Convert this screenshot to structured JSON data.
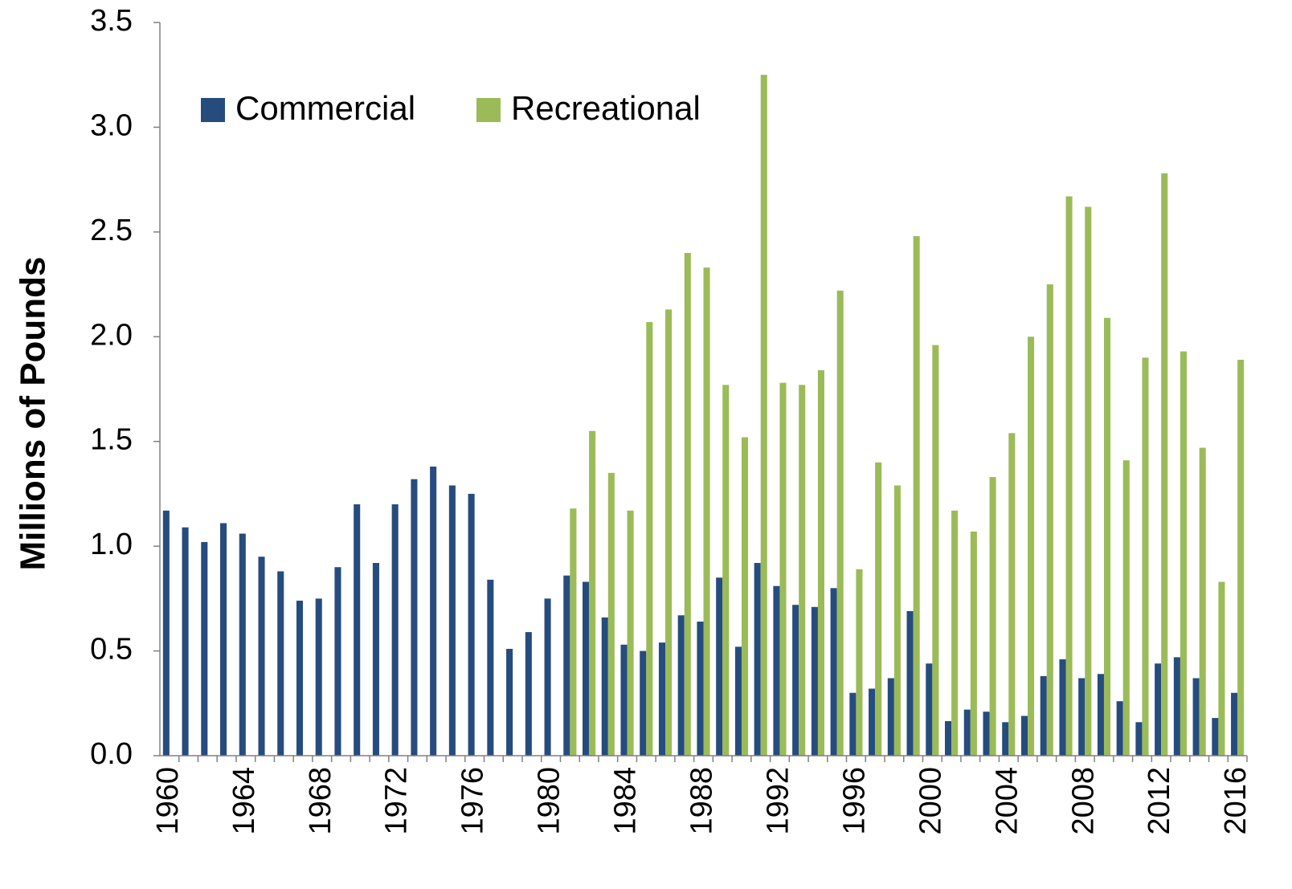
{
  "chart_data": {
    "type": "bar",
    "y_label": "Millions of Pounds",
    "categories": [
      "1960",
      null,
      null,
      null,
      "1964",
      null,
      null,
      null,
      "1968",
      null,
      null,
      null,
      "1972",
      null,
      null,
      null,
      "1976",
      null,
      null,
      null,
      "1980",
      null,
      null,
      null,
      "1984",
      null,
      null,
      null,
      "1988",
      null,
      null,
      null,
      "1992",
      null,
      null,
      null,
      "1996",
      null,
      null,
      null,
      "2000",
      null,
      null,
      null,
      "2004",
      null,
      null,
      null,
      "2008",
      null,
      null,
      null,
      "2012",
      null,
      null,
      null,
      "2016"
    ],
    "series": [
      {
        "name": "Commercial",
        "color": "#264c7e",
        "values": [
          1.17,
          1.09,
          1.02,
          1.11,
          1.06,
          0.95,
          0.88,
          0.74,
          0.75,
          0.9,
          1.2,
          0.92,
          1.2,
          1.32,
          1.38,
          1.29,
          1.25,
          0.84,
          0.51,
          0.59,
          0.75,
          0.86,
          0.83,
          0.66,
          0.53,
          0.5,
          0.54,
          0.67,
          0.64,
          0.85,
          0.52,
          0.92,
          0.81,
          0.72,
          0.71,
          0.8,
          0.3,
          0.32,
          0.37,
          0.69,
          0.44,
          0.165,
          0.22,
          0.21,
          0.16,
          0.19,
          0.38,
          0.46,
          0.37,
          0.39,
          0.26,
          0.16,
          0.44,
          0.47,
          0.37,
          0.18,
          0.3
        ]
      },
      {
        "name": "Recreational",
        "color": "#9bbb59",
        "values": [
          null,
          null,
          null,
          null,
          null,
          null,
          null,
          null,
          null,
          null,
          null,
          null,
          null,
          null,
          null,
          null,
          null,
          null,
          null,
          null,
          null,
          1.18,
          1.55,
          1.35,
          1.17,
          2.07,
          2.13,
          2.4,
          2.33,
          1.77,
          1.52,
          3.25,
          1.78,
          1.77,
          1.84,
          2.22,
          0.89,
          1.4,
          1.29,
          2.48,
          1.96,
          1.17,
          1.07,
          1.33,
          1.54,
          2.0,
          2.25,
          2.67,
          2.62,
          2.09,
          1.41,
          1.9,
          2.78,
          1.93,
          1.47,
          0.83,
          1.89
        ]
      }
    ],
    "ylim": [
      0,
      3.5
    ],
    "yticks": [
      {
        "value": 0,
        "label": "0.0"
      },
      0.5,
      {
        "value": 1,
        "label": "1.0"
      },
      1.5,
      {
        "value": 2,
        "label": "2.0"
      },
      2.5,
      {
        "value": 3,
        "label": "3.0"
      },
      3.5
    ],
    "legend": "top-left"
  }
}
